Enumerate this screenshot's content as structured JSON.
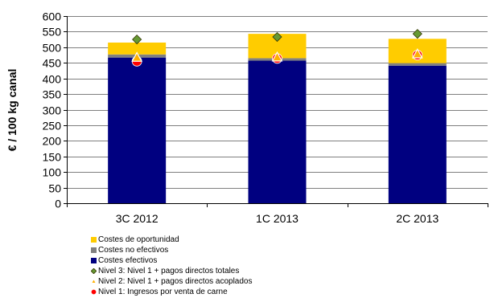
{
  "chart_data": {
    "type": "bar",
    "stacked": true,
    "categories": [
      "3C 2012",
      "1C 2013",
      "2C 2013"
    ],
    "ylabel": "€ / 100 kg canal",
    "ylim": [
      0,
      600
    ],
    "yticks": [
      0,
      50,
      100,
      150,
      200,
      250,
      300,
      350,
      400,
      450,
      500,
      550,
      600
    ],
    "grid": true,
    "legend_position": "bottom",
    "series": [
      {
        "name": "Costes efectivos",
        "type": "bar",
        "color": "#000080",
        "values": [
          467,
          457,
          441
        ]
      },
      {
        "name": "Costes no efectivos",
        "type": "bar",
        "color": "#808080",
        "values": [
          10,
          8,
          8
        ]
      },
      {
        "name": "Costes de oportunidad",
        "type": "bar",
        "color": "#FFCC00",
        "values": [
          38,
          78,
          78
        ]
      },
      {
        "name": "Nivel 3: Nivel 1 + pagos directos totales",
        "type": "marker",
        "marker": "diamond",
        "color": "#669933",
        "values": [
          525,
          533,
          543
        ]
      },
      {
        "name": "Nivel 2: Nivel 1 + pagos directos acoplados",
        "type": "marker",
        "marker": "triangle",
        "color": "#FFB000",
        "values": [
          466,
          467,
          477
        ]
      },
      {
        "name": "Nivel 1: Ingresos por venta de carne",
        "type": "marker",
        "marker": "circle",
        "color": "#FF0000",
        "values": [
          455,
          464,
          475
        ]
      }
    ],
    "legend_order": [
      "Costes de oportunidad",
      "Costes no efectivos",
      "Costes efectivos",
      "Nivel 3: Nivel 1 + pagos directos totales",
      "Nivel 2: Nivel 1 + pagos directos acoplados",
      "Nivel 1: Ingresos por venta de carne"
    ]
  }
}
